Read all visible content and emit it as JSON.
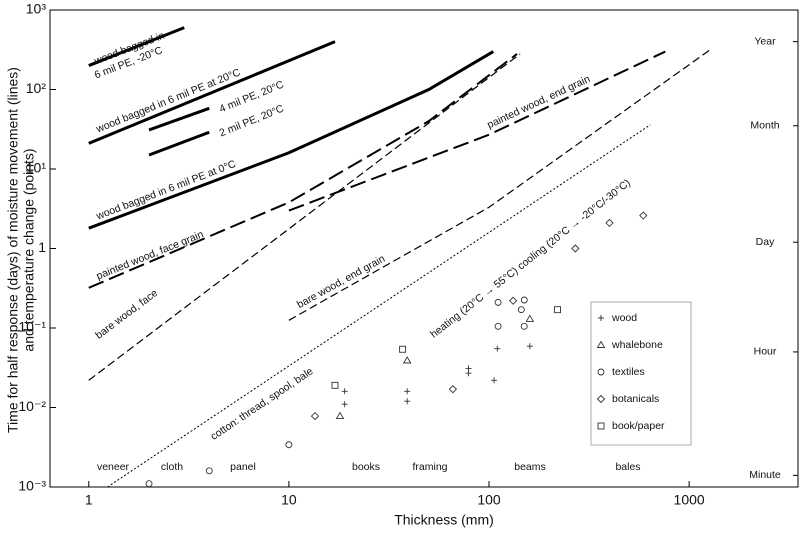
{
  "chart_data": {
    "type": "line",
    "x_label": "Thickness (mm)",
    "y_label": [
      "Time for half response (days) of moisture movement (lines)",
      "and temperature change (points)"
    ],
    "xscale": "log",
    "yscale": "log",
    "xlim": [
      0.64,
      3500
    ],
    "ylim": [
      0.001,
      1000
    ],
    "xticks": [
      1,
      10,
      100,
      1000
    ],
    "yticks": [
      {
        "value": 1000,
        "label": "10³"
      },
      {
        "value": 100,
        "label": "10²"
      },
      {
        "value": 10,
        "label": "10¹"
      },
      1,
      {
        "value": 0.1,
        "label": "10⁻¹"
      },
      {
        "value": 0.01,
        "label": "10⁻²"
      },
      {
        "value": 0.001,
        "label": "10⁻³"
      }
    ],
    "right_ticks": [
      {
        "value": 400,
        "label": "Year"
      },
      {
        "value": 35,
        "label": "Month"
      },
      {
        "value": 1.2,
        "label": "Day"
      },
      {
        "value": 0.05,
        "label": "Hour"
      },
      {
        "value": 0.0014,
        "label": "Minute"
      }
    ],
    "series": [
      {
        "labels": [
          "wood bagged in",
          "6 mil PE, -20°C"
        ],
        "dash": "solid",
        "width": 3,
        "color": "#000",
        "x": [
          1,
          3
        ],
        "y": [
          200,
          600
        ]
      },
      {
        "labels": [
          "wood bagged in 6 mil PE at 20°C"
        ],
        "dash": "solid",
        "width": 3,
        "color": "#000",
        "x": [
          1,
          17
        ],
        "y": [
          21,
          400
        ]
      },
      {
        "labels": [
          "4 mil PE, 20°C"
        ],
        "dash": "solid",
        "width": 3,
        "color": "#000",
        "x": [
          2,
          4
        ],
        "y": [
          31,
          58
        ]
      },
      {
        "labels": [
          "2 mil PE, 20°C"
        ],
        "dash": "solid",
        "width": 3,
        "color": "#000",
        "x": [
          2,
          4
        ],
        "y": [
          15,
          29
        ]
      },
      {
        "labels": [
          "wood bagged in 6 mil PE at 0°C"
        ],
        "dash": "solid",
        "width": 3,
        "color": "#000",
        "x": [
          1,
          10,
          50,
          105
        ],
        "y": [
          1.8,
          16,
          100,
          300
        ]
      },
      {
        "labels": [
          "painted wood, face grain"
        ],
        "dash": "long-dash",
        "width": 2,
        "color": "#000",
        "x": [
          1,
          10,
          50,
          138
        ],
        "y": [
          0.32,
          3.8,
          40,
          280
        ]
      },
      {
        "labels": [
          "painted wood, end grain"
        ],
        "dash": "long-dash",
        "width": 2,
        "color": "#000",
        "x": [
          10,
          100,
          760
        ],
        "y": [
          3,
          27,
          300
        ]
      },
      {
        "labels": [
          "bare wood, face"
        ],
        "dash": "dash",
        "width": 1.2,
        "color": "#000",
        "x": [
          1,
          143
        ],
        "y": [
          0.022,
          280
        ]
      },
      {
        "labels": [
          "bare wood, end grain"
        ],
        "dash": "dash",
        "width": 1.2,
        "color": "#000",
        "x": [
          10,
          100,
          1260
        ],
        "y": [
          0.125,
          3.3,
          310
        ]
      },
      {
        "labels": [
          "cotton: thread, spool, bale"
        ],
        "dash": "dot",
        "width": 1,
        "color": "#000",
        "x": [
          1.24,
          640
        ],
        "y": [
          0.001,
          36
        ]
      }
    ],
    "points": [
      {
        "name": "wood",
        "marker": "plus",
        "x": [
          19,
          19,
          39,
          39,
          79,
          79,
          106,
          110,
          160
        ],
        "y": [
          0.016,
          0.011,
          0.016,
          0.012,
          0.031,
          0.027,
          0.022,
          0.055,
          0.059
        ]
      },
      {
        "name": "whalebone",
        "marker": "triangle",
        "x": [
          18,
          39,
          160
        ],
        "y": [
          0.0078,
          0.039,
          0.13
        ]
      },
      {
        "name": "textiles",
        "marker": "circle",
        "x": [
          10,
          4,
          2,
          111,
          111,
          150,
          150,
          145
        ],
        "y": [
          0.0034,
          0.0016,
          0.0011,
          0.21,
          0.105,
          0.105,
          0.225,
          0.17
        ]
      },
      {
        "name": "botanicals",
        "marker": "diamond",
        "x": [
          13.5,
          66,
          270,
          400,
          590,
          132
        ],
        "y": [
          0.0078,
          0.017,
          1.0,
          2.1,
          2.6,
          0.22
        ]
      },
      {
        "name": "book/paper",
        "marker": "square",
        "x": [
          17,
          37,
          220
        ],
        "y": [
          0.019,
          0.054,
          0.17
        ]
      }
    ],
    "annotations": [
      "heating (20°C → 55°C) cooling (20°C → -20°C/-30°C)"
    ],
    "size_classes": [
      "veneer",
      "cloth",
      "panel",
      "books",
      "framing",
      "beams",
      "bales"
    ],
    "legend": "lower-right"
  }
}
